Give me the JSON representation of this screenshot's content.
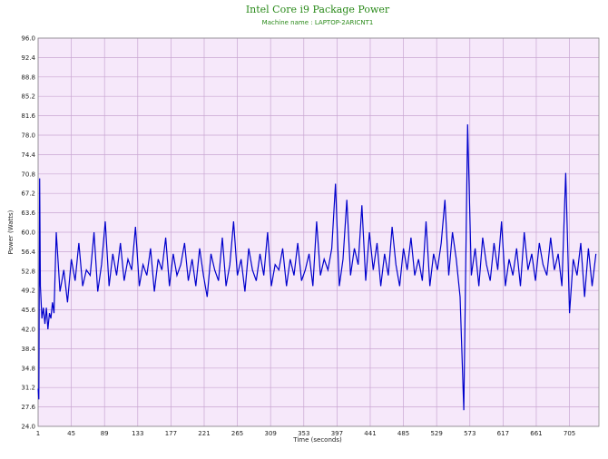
{
  "chart_data": {
    "type": "line",
    "title": "Intel Core i9 Package Power",
    "subtitle": "Machine name : LAPTOP-2ARICNT1",
    "x_label": "Time (seconds)",
    "y_label": "Power (Watts)",
    "x": [
      1,
      2,
      3,
      4,
      6,
      8,
      10,
      12,
      14,
      16,
      18,
      20,
      22,
      25,
      30,
      35,
      40,
      45,
      50,
      55,
      60,
      65,
      70,
      75,
      80,
      85,
      90,
      95,
      100,
      105,
      110,
      115,
      120,
      125,
      130,
      135,
      140,
      145,
      150,
      155,
      160,
      165,
      170,
      175,
      180,
      185,
      190,
      195,
      200,
      205,
      210,
      215,
      220,
      225,
      230,
      235,
      240,
      245,
      250,
      255,
      260,
      265,
      270,
      275,
      280,
      285,
      290,
      295,
      300,
      305,
      310,
      315,
      320,
      325,
      330,
      335,
      340,
      345,
      350,
      355,
      360,
      365,
      370,
      375,
      380,
      385,
      390,
      395,
      400,
      405,
      410,
      415,
      420,
      425,
      430,
      435,
      440,
      445,
      450,
      455,
      460,
      465,
      470,
      475,
      480,
      485,
      490,
      495,
      500,
      505,
      510,
      515,
      520,
      525,
      530,
      535,
      540,
      545,
      550,
      555,
      560,
      565,
      570,
      575,
      580,
      585,
      590,
      595,
      600,
      605,
      610,
      615,
      620,
      625,
      630,
      635,
      640,
      645,
      650,
      655,
      660,
      665,
      670,
      675,
      680,
      685,
      690,
      695,
      700,
      705,
      710,
      715,
      720,
      725,
      730,
      735,
      740
    ],
    "series": [
      {
        "name": "Package Power",
        "color": "#0000cc",
        "values": [
          31,
          29,
          70,
          50,
          44,
          46,
          43,
          46,
          42,
          45,
          44,
          47,
          45,
          60,
          49,
          53,
          47,
          55,
          51,
          58,
          50,
          53,
          52,
          60,
          49,
          54,
          62,
          50,
          56,
          52,
          58,
          51,
          55,
          53,
          61,
          50,
          54,
          52,
          57,
          49,
          55,
          53,
          59,
          50,
          56,
          52,
          54,
          58,
          51,
          55,
          50,
          57,
          52,
          48,
          56,
          53,
          51,
          59,
          50,
          54,
          62,
          52,
          55,
          49,
          57,
          53,
          51,
          56,
          52,
          60,
          50,
          54,
          53,
          57,
          50,
          55,
          52,
          58,
          51,
          53,
          56,
          50,
          62,
          52,
          55,
          53,
          57,
          69,
          50,
          55,
          66,
          52,
          57,
          54,
          65,
          51,
          60,
          53,
          58,
          50,
          56,
          52,
          61,
          54,
          50,
          57,
          53,
          59,
          52,
          55,
          51,
          62,
          50,
          56,
          53,
          58,
          66,
          52,
          60,
          55,
          48,
          27,
          80,
          52,
          57,
          50,
          59,
          54,
          51,
          58,
          53,
          62,
          50,
          55,
          52,
          57,
          50,
          60,
          53,
          56,
          51,
          58,
          54,
          52,
          59,
          53,
          56,
          50,
          71,
          45,
          55,
          52,
          58,
          48,
          57,
          50,
          56
        ]
      }
    ],
    "xlim": [
      1,
      744
    ],
    "xticks": [
      1,
      45,
      89,
      133,
      177,
      221,
      265,
      309,
      353,
      397,
      441,
      485,
      529,
      573,
      617,
      661,
      705
    ],
    "ylim": [
      24,
      96
    ],
    "yticks": [
      {
        "value": 24,
        "label": "24.0"
      },
      27.6,
      31.2,
      34.8,
      38.4,
      {
        "value": 42,
        "label": "42.0"
      },
      45.6,
      49.2,
      52.8,
      56.4,
      {
        "value": 60,
        "label": "60.0"
      },
      63.6,
      67.2,
      70.8,
      74.4,
      {
        "value": 78,
        "label": "78.0"
      },
      81.6,
      85.2,
      88.8,
      92.4,
      {
        "value": 96,
        "label": "96.0"
      }
    ],
    "grid": true,
    "background": "#f6e8fa"
  }
}
